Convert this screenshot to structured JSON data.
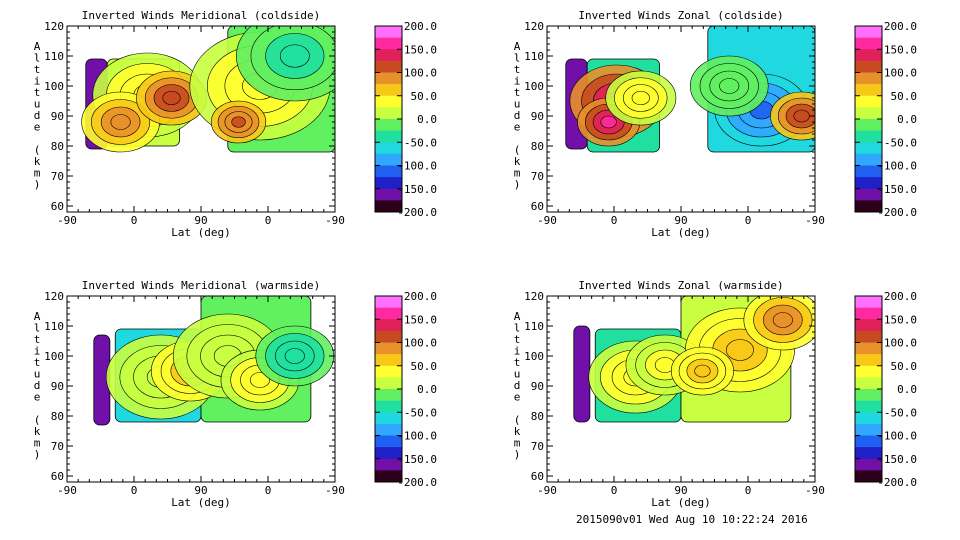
{
  "footer": "2015090v01 Wed Aug 10 10:22:24 2016",
  "colorbar": {
    "labels": [
      "200.0",
      "150.0",
      "100.0",
      "50.0",
      "0.0",
      "-50.0",
      "-100.0",
      "-150.0",
      "-200.0"
    ],
    "colors": [
      "#ff70ff",
      "#ff2aa0",
      "#e0205a",
      "#c84a20",
      "#e8902a",
      "#f8c818",
      "#ffff30",
      "#c8ff40",
      "#60f060",
      "#20e0a0",
      "#20d8e0",
      "#30a8ff",
      "#2060f0",
      "#2020c8",
      "#7010a8",
      "#2c0018"
    ]
  },
  "chart_data": [
    {
      "type": "heatmap",
      "title": "Inverted Winds Meridional (coldside)",
      "xlabel": "Lat (deg)",
      "ylabel": "Altitude (km)",
      "xticks": [
        "-90",
        "0",
        "90",
        "0",
        "-90"
      ],
      "yticks": [
        "60",
        "70",
        "80",
        "90",
        "100",
        "110",
        "120"
      ],
      "ylim": [
        58,
        120
      ],
      "zlim": [
        -200,
        200
      ],
      "blocks": [
        {
          "x0": 0.07,
          "x1": 0.15,
          "y0": 79,
          "y1": 109,
          "v": -150
        },
        {
          "x0": 0.15,
          "x1": 0.42,
          "y0": 80,
          "y1": 109,
          "v": 20
        },
        {
          "x0": 0.6,
          "x1": 1.0,
          "y0": 78,
          "y1": 120,
          "v": -20
        }
      ],
      "blobs": [
        {
          "cx": 0.3,
          "cy": 97,
          "r": 14,
          "v": 45
        },
        {
          "cx": 0.2,
          "cy": 88,
          "r": 10,
          "v": 90
        },
        {
          "cx": 0.39,
          "cy": 96,
          "r": 9,
          "v": 120
        },
        {
          "cx": 0.72,
          "cy": 100,
          "r": 18,
          "v": 45
        },
        {
          "cx": 0.64,
          "cy": 88,
          "r": 7,
          "v": 110
        },
        {
          "cx": 0.85,
          "cy": 110,
          "r": 15,
          "v": -35
        }
      ]
    },
    {
      "type": "heatmap",
      "title": "Inverted Winds Zonal (coldside)",
      "xlabel": "Lat (deg)",
      "ylabel": "Altitude (km)",
      "xticks": [
        "-90",
        "0",
        "90",
        "0",
        "-90"
      ],
      "yticks": [
        "60",
        "70",
        "80",
        "90",
        "100",
        "110",
        "120"
      ],
      "ylim": [
        58,
        120
      ],
      "zlim": [
        -200,
        200
      ],
      "blocks": [
        {
          "x0": 0.07,
          "x1": 0.15,
          "y0": 79,
          "y1": 109,
          "v": -170
        },
        {
          "x0": 0.15,
          "x1": 0.42,
          "y0": 78,
          "y1": 109,
          "v": -30
        },
        {
          "x0": 0.6,
          "x1": 1.0,
          "y0": 78,
          "y1": 120,
          "v": -70
        }
      ],
      "blobs": [
        {
          "cx": 0.26,
          "cy": 95,
          "r": 12,
          "v": 150
        },
        {
          "cx": 0.23,
          "cy": 88,
          "r": 8,
          "v": 170
        },
        {
          "cx": 0.35,
          "cy": 96,
          "r": 9,
          "v": 40
        },
        {
          "cx": 0.8,
          "cy": 92,
          "r": 12,
          "v": -110
        },
        {
          "cx": 0.95,
          "cy": 90,
          "r": 8,
          "v": 120
        },
        {
          "cx": 0.68,
          "cy": 100,
          "r": 10,
          "v": -20
        }
      ]
    },
    {
      "type": "heatmap",
      "title": "Inverted Winds Meridional (warmside)",
      "xlabel": "Lat (deg)",
      "ylabel": "Altitude (km)",
      "xticks": [
        "-90",
        "0",
        "90",
        "0",
        "-90"
      ],
      "yticks": [
        "60",
        "70",
        "80",
        "90",
        "100",
        "110",
        "120"
      ],
      "ylim": [
        58,
        120
      ],
      "zlim": [
        -200,
        200
      ],
      "blocks": [
        {
          "x0": 0.1,
          "x1": 0.16,
          "y0": 77,
          "y1": 107,
          "v": -150
        },
        {
          "x0": 0.18,
          "x1": 0.5,
          "y0": 78,
          "y1": 109,
          "v": -60
        },
        {
          "x0": 0.5,
          "x1": 0.91,
          "y0": 78,
          "y1": 120,
          "v": -20
        }
      ],
      "blobs": [
        {
          "cx": 0.35,
          "cy": 93,
          "r": 14,
          "v": 10
        },
        {
          "cx": 0.46,
          "cy": 95,
          "r": 10,
          "v": 60
        },
        {
          "cx": 0.6,
          "cy": 100,
          "r": 14,
          "v": 20
        },
        {
          "cx": 0.72,
          "cy": 92,
          "r": 10,
          "v": 40
        },
        {
          "cx": 0.85,
          "cy": 100,
          "r": 10,
          "v": -40
        }
      ]
    },
    {
      "type": "heatmap",
      "title": "Inverted Winds Zonal (warmside)",
      "xlabel": "Lat (deg)",
      "ylabel": "Altitude (km)",
      "xticks": [
        "-90",
        "0",
        "90",
        "0",
        "-90"
      ],
      "yticks": [
        "60",
        "70",
        "80",
        "90",
        "100",
        "110",
        "120"
      ],
      "ylim": [
        58,
        120
      ],
      "zlim": [
        -200,
        200
      ],
      "blocks": [
        {
          "x0": 0.1,
          "x1": 0.16,
          "y0": 78,
          "y1": 110,
          "v": -160
        },
        {
          "x0": 0.18,
          "x1": 0.5,
          "y0": 78,
          "y1": 109,
          "v": -30
        },
        {
          "x0": 0.5,
          "x1": 0.91,
          "y0": 78,
          "y1": 120,
          "v": 10
        }
      ],
      "blobs": [
        {
          "cx": 0.33,
          "cy": 93,
          "r": 12,
          "v": 40
        },
        {
          "cx": 0.44,
          "cy": 97,
          "r": 10,
          "v": 30
        },
        {
          "cx": 0.72,
          "cy": 102,
          "r": 14,
          "v": 70
        },
        {
          "cx": 0.88,
          "cy": 112,
          "r": 10,
          "v": 90
        },
        {
          "cx": 0.58,
          "cy": 95,
          "r": 8,
          "v": 60
        }
      ]
    }
  ]
}
